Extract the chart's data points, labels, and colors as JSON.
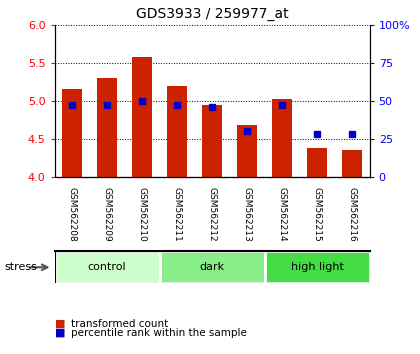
{
  "title": "GDS3933 / 259977_at",
  "categories": [
    "GSM562208",
    "GSM562209",
    "GSM562210",
    "GSM562211",
    "GSM562212",
    "GSM562213",
    "GSM562214",
    "GSM562215",
    "GSM562216"
  ],
  "bar_values": [
    5.15,
    5.3,
    5.58,
    5.2,
    4.95,
    4.68,
    5.02,
    4.38,
    4.36
  ],
  "percentile_values": [
    47,
    47,
    50,
    47,
    46,
    30,
    47,
    28,
    28
  ],
  "ylim": [
    4.0,
    6.0
  ],
  "y2lim": [
    0,
    100
  ],
  "yticks": [
    4.0,
    4.5,
    5.0,
    5.5,
    6.0
  ],
  "y2ticks": [
    0,
    25,
    50,
    75,
    100
  ],
  "bar_color": "#cc2200",
  "dot_color": "#0000cc",
  "groups": [
    {
      "label": "control",
      "indices": [
        0,
        1,
        2
      ],
      "color": "#ccffcc"
    },
    {
      "label": "dark",
      "indices": [
        3,
        4,
        5
      ],
      "color": "#88ee88"
    },
    {
      "label": "high light",
      "indices": [
        6,
        7,
        8
      ],
      "color": "#44dd44"
    }
  ],
  "stress_label": "stress",
  "bar_width": 0.55,
  "label_bg": "#cccccc",
  "label_divider": "#ffffff"
}
